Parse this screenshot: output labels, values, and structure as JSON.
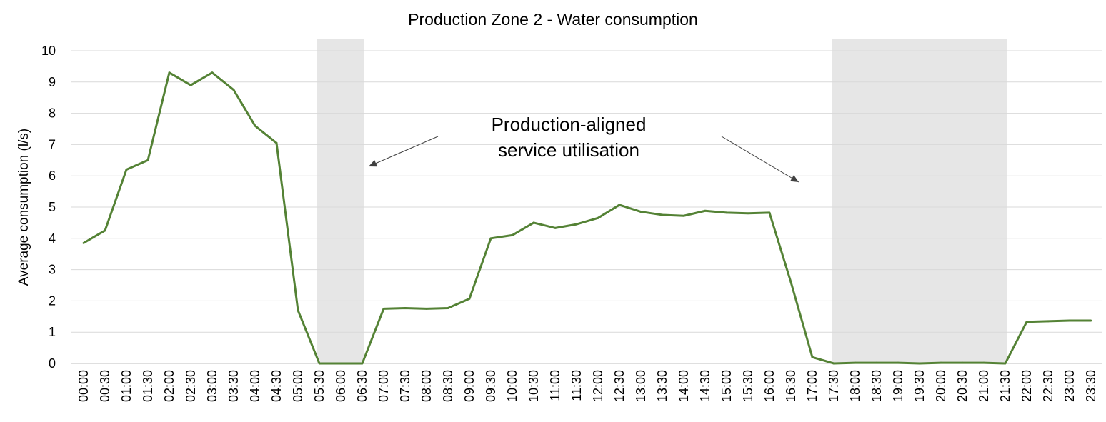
{
  "chart_data": {
    "type": "line",
    "title": "Production Zone 2 - Water consumption",
    "xlabel": "",
    "ylabel": "Average consumption (l/s)",
    "ylim": [
      0,
      10
    ],
    "yticks": [
      "0",
      "1",
      "2",
      "3",
      "4",
      "5",
      "6",
      "7",
      "8",
      "9",
      "10"
    ],
    "grid": "horizontal",
    "categories": [
      "00:00",
      "00:30",
      "01:00",
      "01:30",
      "02:00",
      "02:30",
      "03:00",
      "03:30",
      "04:00",
      "04:30",
      "05:00",
      "05:30",
      "06:00",
      "06:30",
      "07:00",
      "07:30",
      "08:00",
      "08:30",
      "09:00",
      "09:30",
      "10:00",
      "10:30",
      "11:00",
      "11:30",
      "12:00",
      "12:30",
      "13:00",
      "13:30",
      "14:00",
      "14:30",
      "15:00",
      "15:30",
      "16:00",
      "16:30",
      "17:00",
      "17:30",
      "18:00",
      "18:30",
      "19:00",
      "19:30",
      "20:00",
      "20:30",
      "21:00",
      "21:30",
      "22:00",
      "22:30",
      "23:00",
      "23:30"
    ],
    "series": [
      {
        "color": "#548235",
        "values": [
          3.85,
          4.25,
          6.2,
          6.5,
          9.3,
          8.9,
          9.3,
          8.75,
          7.6,
          7.05,
          1.7,
          0.0,
          0.0,
          0.0,
          1.75,
          1.77,
          1.75,
          1.77,
          2.07,
          4.0,
          4.1,
          4.5,
          4.33,
          4.45,
          4.65,
          5.07,
          4.85,
          4.75,
          4.72,
          4.88,
          4.82,
          4.8,
          4.82,
          2.6,
          0.2,
          0.0,
          0.02,
          0.02,
          0.02,
          0.0,
          0.02,
          0.02,
          0.02,
          0.0,
          1.33,
          1.35,
          1.37,
          1.37
        ]
      }
    ],
    "shaded_ranges": [
      {
        "from": "05:30",
        "to": "06:30",
        "color": "#e6e6e6"
      },
      {
        "from": "17:30",
        "to": "21:30",
        "color": "#e6e6e6"
      }
    ],
    "annotation": {
      "lines": [
        "Production-aligned",
        "service utilisation"
      ]
    }
  }
}
